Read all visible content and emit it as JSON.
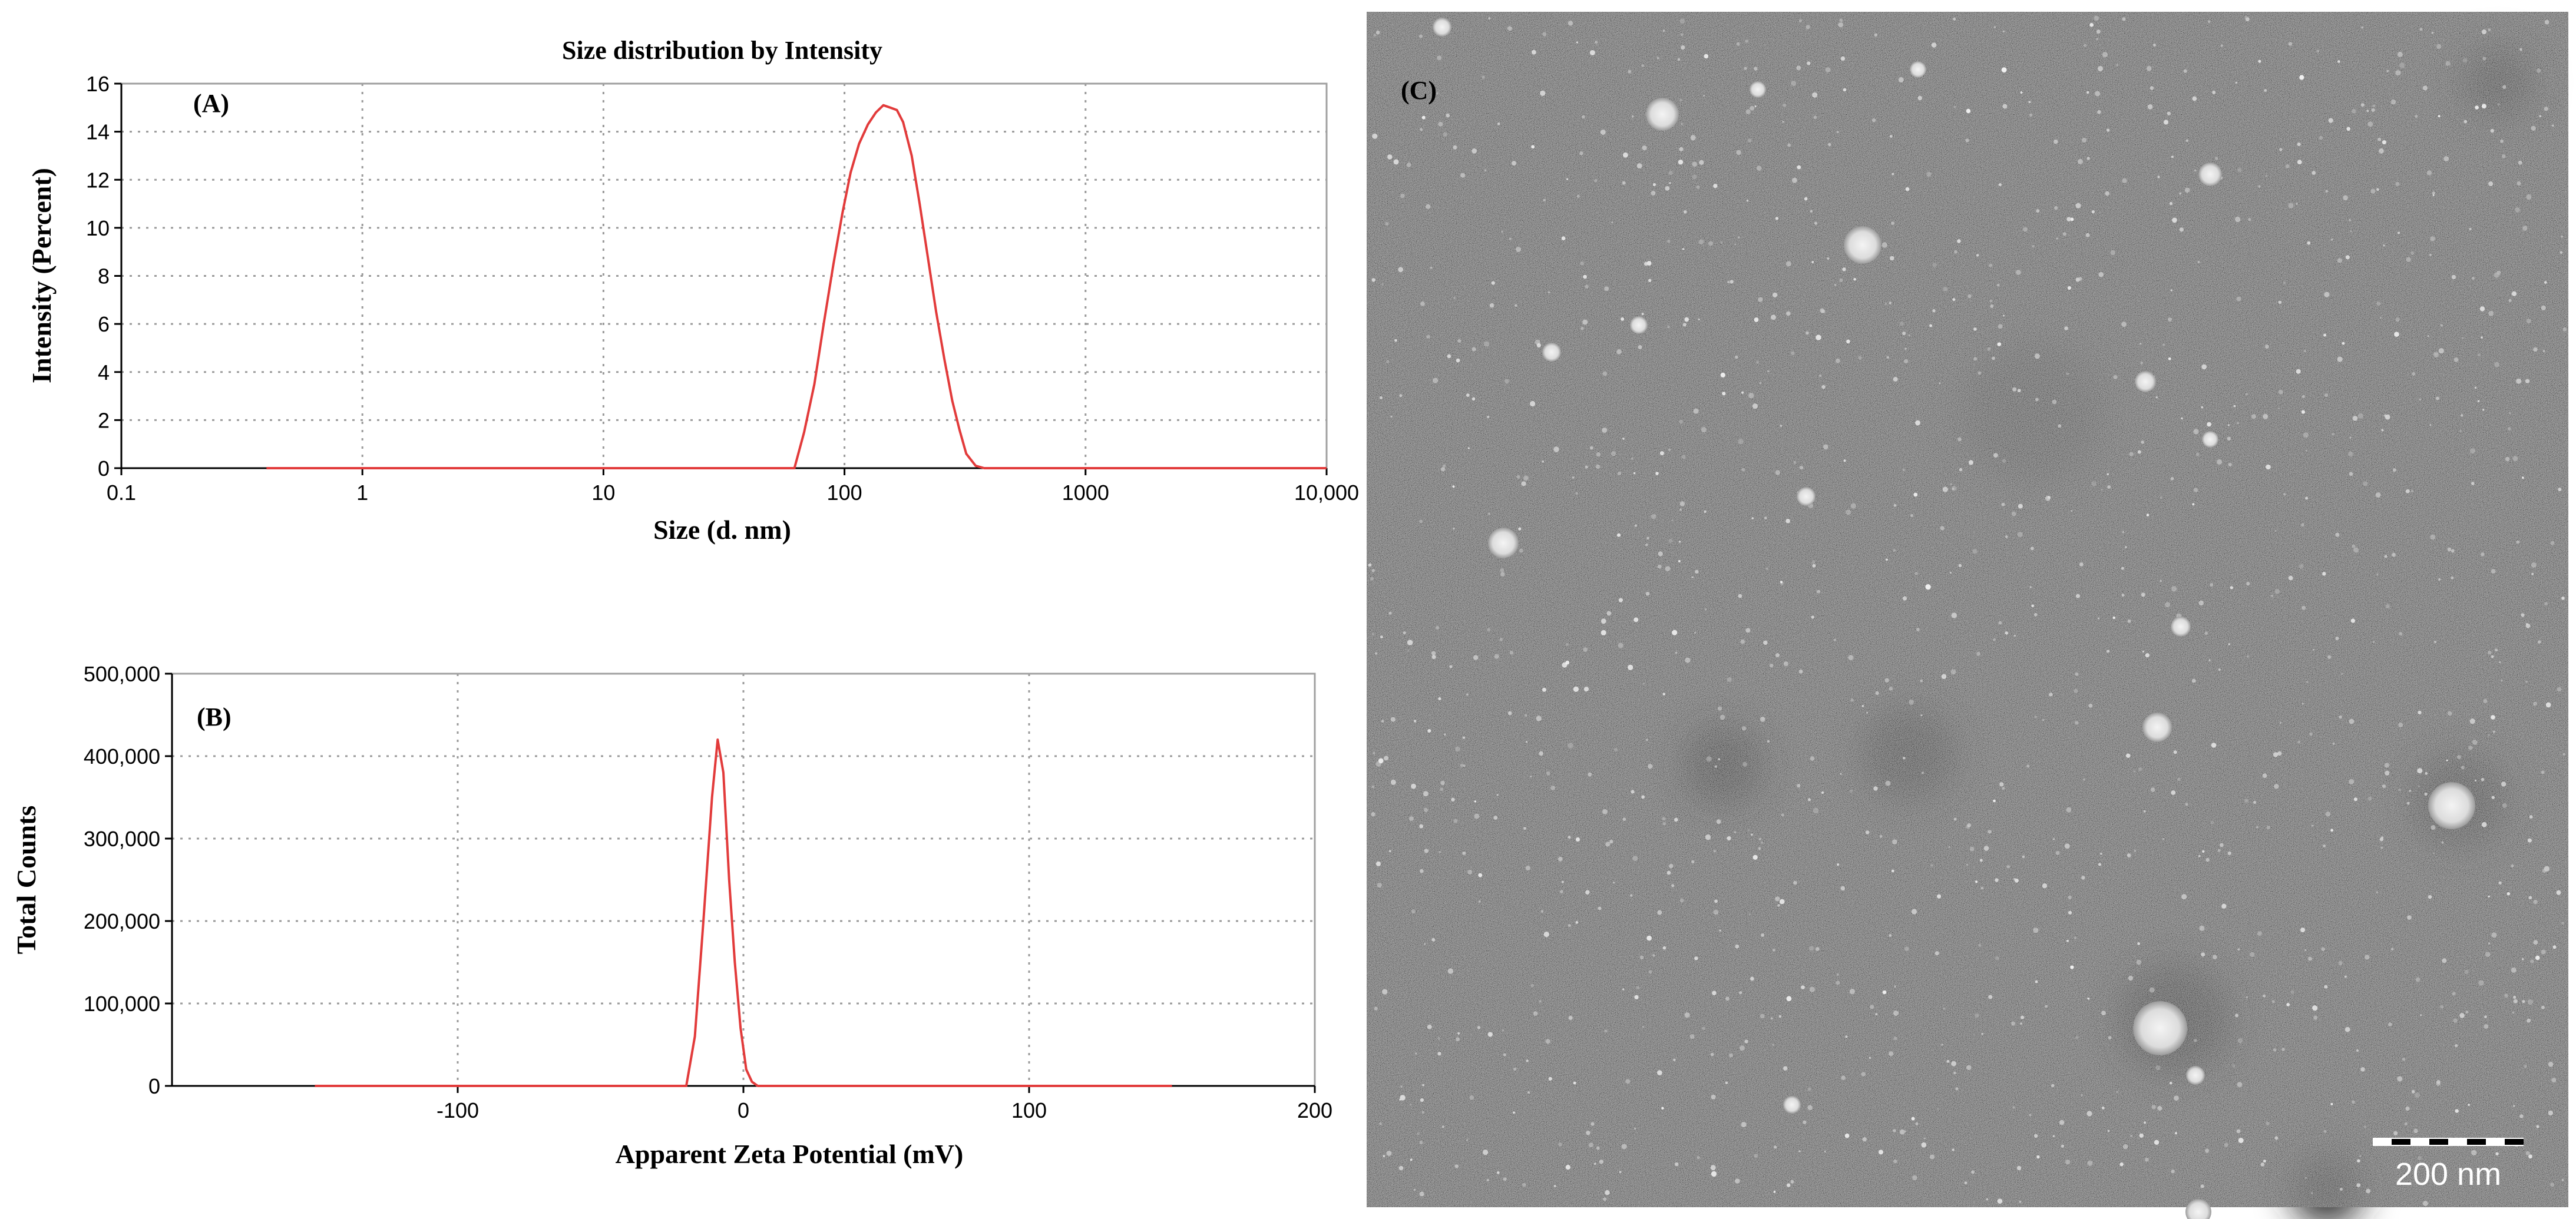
{
  "chart_data": [
    {
      "type": "line",
      "panel_label": "(A)",
      "title": "Size distribution by Intensity",
      "xlabel": "Size (d. nm)",
      "ylabel": "Intensity (Percent)",
      "x_scale": "log",
      "xlim": [
        0.1,
        10000
      ],
      "ylim": [
        0,
        16
      ],
      "x_ticks": [
        "0.1",
        "1",
        "10",
        "100",
        "1000",
        "10,000"
      ],
      "y_ticks": [
        "0",
        "2",
        "4",
        "6",
        "8",
        "10",
        "12",
        "14",
        "16"
      ],
      "grid": true,
      "series": [
        {
          "color": "#e23b3b",
          "x": [
            0.4,
            1,
            10,
            50,
            62,
            68,
            75,
            82,
            90,
            98,
            106,
            115,
            125,
            135,
            145,
            155,
            165,
            175,
            190,
            205,
            220,
            240,
            260,
            280,
            300,
            320,
            350,
            380,
            450,
            1000,
            10000
          ],
          "y": [
            0,
            0,
            0,
            0,
            0,
            1.5,
            3.5,
            6.0,
            8.5,
            10.6,
            12.3,
            13.5,
            14.3,
            14.8,
            15.1,
            15.0,
            14.9,
            14.4,
            13.0,
            11.0,
            9.0,
            6.5,
            4.5,
            2.8,
            1.6,
            0.6,
            0.1,
            0,
            0,
            0,
            0
          ]
        }
      ]
    },
    {
      "type": "line",
      "panel_label": "(B)",
      "xlabel": "Apparent Zeta Potential (mV)",
      "ylabel": "Total Counts",
      "xlim": [
        -200,
        200
      ],
      "ylim": [
        0,
        500000
      ],
      "x_ticks": [
        "-100",
        "0",
        "100",
        "200"
      ],
      "y_ticks": [
        "0",
        "100,000",
        "200,000",
        "300,000",
        "400,000",
        "500,000"
      ],
      "grid": true,
      "series": [
        {
          "color": "#e23b3b",
          "x": [
            -150,
            -20,
            -17,
            -14,
            -11,
            -9,
            -7,
            -5,
            -3,
            -1,
            1,
            3,
            5,
            150
          ],
          "y": [
            0,
            0,
            60000,
            200000,
            350000,
            420000,
            380000,
            250000,
            150000,
            70000,
            20000,
            5000,
            0,
            0
          ]
        }
      ]
    }
  ],
  "micrograph": {
    "panel_label": "(C)",
    "scale_bar_label": "200 nm"
  }
}
